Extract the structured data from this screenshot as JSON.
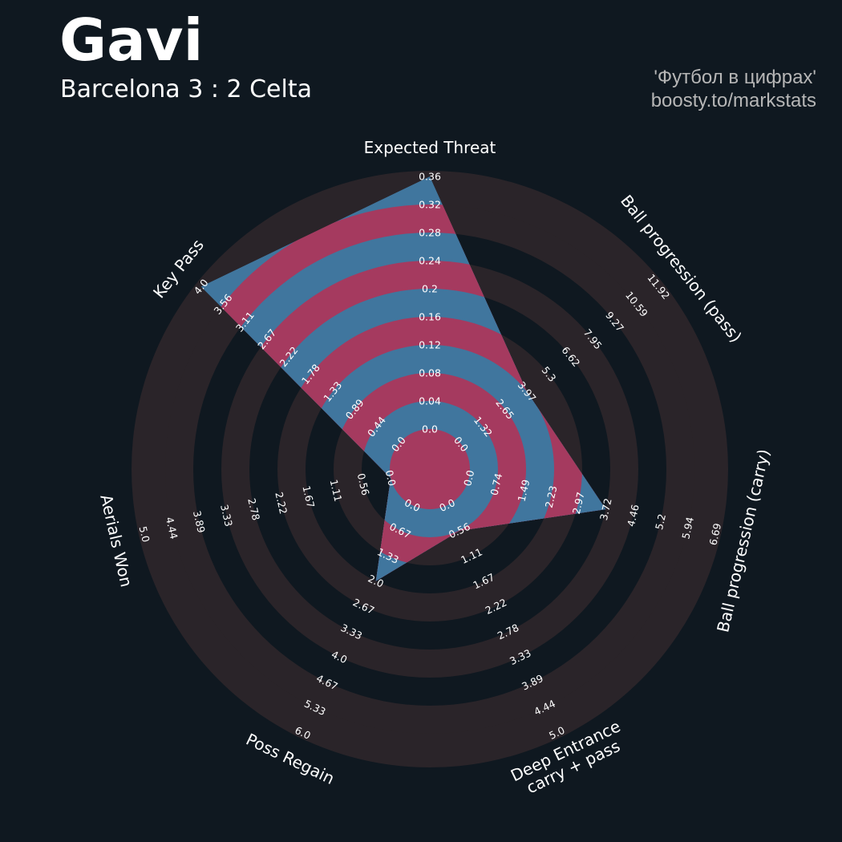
{
  "header": {
    "title": "Gavi",
    "subtitle": "Barcelona 3 : 2 Celta",
    "credit_line1": "'Футбол в цифрах'",
    "credit_line2": "boosty.to/markstats"
  },
  "colors": {
    "background": "#0f1820",
    "ring_dark": "#2a2429",
    "player_blue": "#40769e",
    "player_pink": "#a53a5f",
    "text": "#ffffff",
    "credit": "#b6b6b6"
  },
  "chart_data": {
    "type": "radar",
    "params": [
      {
        "label": [
          "Expected Threat"
        ],
        "min": 0.0,
        "max": 0.36,
        "value": 0.36,
        "ticks": [
          "0.0",
          "0.04",
          "0.08",
          "0.12",
          "0.16",
          "0.2",
          "0.24",
          "0.28",
          "0.32",
          "0.36"
        ]
      },
      {
        "label": [
          "Ball progression (pass)"
        ],
        "min": 0.0,
        "max": 11.92,
        "value": 3.97,
        "ticks": [
          "0.0",
          "1.32",
          "2.65",
          "3.97",
          "5.3",
          "6.62",
          "7.95",
          "9.27",
          "10.59",
          "11.92"
        ]
      },
      {
        "label": [
          "Ball progression (carry)"
        ],
        "min": 0.0,
        "max": 6.69,
        "value": 3.72,
        "ticks": [
          "0.0",
          "0.74",
          "1.49",
          "2.23",
          "2.97",
          "3.72",
          "4.46",
          "5.2",
          "5.94",
          "6.69"
        ]
      },
      {
        "label": [
          "Deep Entrance",
          "carry + pass"
        ],
        "min": 0.0,
        "max": 5.0,
        "value": 0.56,
        "ticks": [
          "0.0",
          "0.56",
          "1.11",
          "1.67",
          "2.22",
          "2.78",
          "3.33",
          "3.89",
          "4.44",
          "5.0"
        ]
      },
      {
        "label": [
          "Poss Regain"
        ],
        "min": 0.0,
        "max": 6.0,
        "value": 2.0,
        "ticks": [
          "0.0",
          "0.67",
          "1.33",
          "2.0",
          "2.67",
          "3.33",
          "4.0",
          "4.67",
          "5.33",
          "6.0"
        ]
      },
      {
        "label": [
          "Aerials Won"
        ],
        "min": 0.0,
        "max": 5.0,
        "value": 0.0,
        "ticks": [
          "0.0",
          "0.56",
          "1.11",
          "1.67",
          "2.22",
          "2.78",
          "3.33",
          "3.89",
          "4.44",
          "5.0"
        ]
      },
      {
        "label": [
          "Key Pass"
        ],
        "min": 0.0,
        "max": 4.0,
        "value": 4.0,
        "ticks": [
          "0.0",
          "0.44",
          "0.89",
          "1.33",
          "1.78",
          "2.22",
          "2.67",
          "3.11",
          "3.56",
          "4.0"
        ]
      }
    ]
  }
}
